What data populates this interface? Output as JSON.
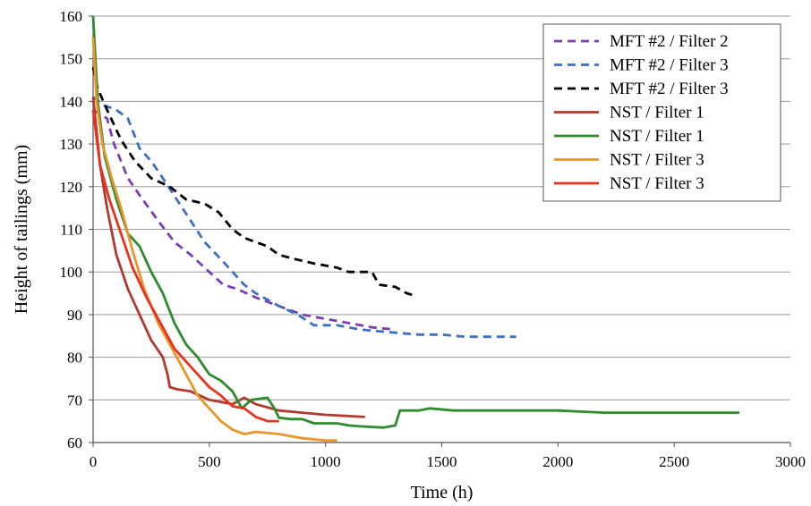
{
  "chart_data": {
    "type": "line",
    "xlabel": "Time (h)",
    "ylabel": "Height of tailings (mm)",
    "xlim": [
      0,
      3000
    ],
    "ylim": [
      60,
      160
    ],
    "xticks": [
      0,
      500,
      1000,
      1500,
      2000,
      2500,
      3000
    ],
    "yticks": [
      60,
      70,
      80,
      90,
      100,
      110,
      120,
      130,
      140,
      150,
      160
    ],
    "grid": "horizontal",
    "legend_position": "top-right",
    "series": [
      {
        "name": "MFT #2 / Filter 2",
        "color": "#7B3FB0",
        "style": "dashed",
        "points": [
          [
            0,
            138
          ],
          [
            30,
            137
          ],
          [
            60,
            136
          ],
          [
            90,
            130
          ],
          [
            150,
            122
          ],
          [
            200,
            118
          ],
          [
            280,
            112
          ],
          [
            350,
            107
          ],
          [
            420,
            104
          ],
          [
            500,
            100
          ],
          [
            560,
            97
          ],
          [
            620,
            96
          ],
          [
            700,
            94
          ],
          [
            800,
            92
          ],
          [
            900,
            90
          ],
          [
            1000,
            89
          ],
          [
            1100,
            88
          ],
          [
            1200,
            87
          ],
          [
            1300,
            86.5
          ]
        ]
      },
      {
        "name": "MFT #2 / Filter 3",
        "color": "#3F6FBF",
        "style": "dashed",
        "points": [
          [
            0,
            141
          ],
          [
            50,
            139
          ],
          [
            100,
            138
          ],
          [
            150,
            136
          ],
          [
            200,
            129
          ],
          [
            250,
            126
          ],
          [
            300,
            122
          ],
          [
            360,
            117
          ],
          [
            420,
            112
          ],
          [
            480,
            107
          ],
          [
            550,
            103
          ],
          [
            600,
            100
          ],
          [
            650,
            97
          ],
          [
            700,
            95
          ],
          [
            800,
            92
          ],
          [
            880,
            90
          ],
          [
            950,
            87.5
          ],
          [
            1050,
            87.5
          ],
          [
            1150,
            86.5
          ],
          [
            1250,
            86
          ],
          [
            1400,
            85.3
          ],
          [
            1500,
            85.3
          ],
          [
            1600,
            84.8
          ],
          [
            1820,
            84.8
          ]
        ]
      },
      {
        "name": "MFT #2 / Filter 3",
        "color": "#000000",
        "style": "dashed",
        "points": [
          [
            0,
            148
          ],
          [
            20,
            143
          ],
          [
            60,
            138
          ],
          [
            120,
            131
          ],
          [
            180,
            126
          ],
          [
            250,
            122
          ],
          [
            330,
            120
          ],
          [
            400,
            117
          ],
          [
            480,
            116
          ],
          [
            540,
            114
          ],
          [
            600,
            110
          ],
          [
            650,
            108
          ],
          [
            700,
            107
          ],
          [
            750,
            106
          ],
          [
            800,
            104
          ],
          [
            870,
            103
          ],
          [
            950,
            102
          ],
          [
            1050,
            101
          ],
          [
            1100,
            100
          ],
          [
            1150,
            100
          ],
          [
            1200,
            100
          ],
          [
            1230,
            97
          ],
          [
            1300,
            96.5
          ],
          [
            1350,
            95
          ],
          [
            1380,
            94.5
          ]
        ]
      },
      {
        "name": "NST / Filter 1",
        "color": "#B03A2E",
        "style": "solid",
        "points": [
          [
            0,
            141
          ],
          [
            30,
            125
          ],
          [
            60,
            115
          ],
          [
            100,
            104
          ],
          [
            150,
            96
          ],
          [
            200,
            90
          ],
          [
            250,
            84
          ],
          [
            300,
            80
          ],
          [
            320,
            76
          ],
          [
            330,
            73
          ],
          [
            360,
            72.5
          ],
          [
            420,
            72
          ],
          [
            500,
            70
          ],
          [
            600,
            69
          ],
          [
            650,
            70.5
          ],
          [
            700,
            69
          ],
          [
            800,
            67.5
          ],
          [
            900,
            67
          ],
          [
            1000,
            66.5
          ],
          [
            1100,
            66.2
          ],
          [
            1170,
            66
          ]
        ]
      },
      {
        "name": "NST / Filter 1",
        "color": "#2E8B2E",
        "style": "solid",
        "points": [
          [
            0,
            160
          ],
          [
            20,
            140
          ],
          [
            50,
            127
          ],
          [
            100,
            117
          ],
          [
            150,
            109
          ],
          [
            200,
            106
          ],
          [
            250,
            100
          ],
          [
            300,
            95
          ],
          [
            350,
            88
          ],
          [
            400,
            83
          ],
          [
            450,
            80
          ],
          [
            500,
            76
          ],
          [
            550,
            74.5
          ],
          [
            600,
            72
          ],
          [
            640,
            68
          ],
          [
            660,
            69
          ],
          [
            680,
            70
          ],
          [
            750,
            70.5
          ],
          [
            780,
            68
          ],
          [
            800,
            65.8
          ],
          [
            850,
            65.5
          ],
          [
            900,
            65.5
          ],
          [
            950,
            64.5
          ],
          [
            1050,
            64.5
          ],
          [
            1100,
            64
          ],
          [
            1150,
            63.8
          ],
          [
            1250,
            63.5
          ],
          [
            1300,
            64
          ],
          [
            1320,
            67.5
          ],
          [
            1400,
            67.5
          ],
          [
            1450,
            68
          ],
          [
            1550,
            67.5
          ],
          [
            1700,
            67.5
          ],
          [
            2000,
            67.5
          ],
          [
            2200,
            67
          ],
          [
            2500,
            67
          ],
          [
            2780,
            67
          ]
        ]
      },
      {
        "name": "NST / Filter 3",
        "color": "#E8962A",
        "style": "solid",
        "points": [
          [
            0,
            155
          ],
          [
            15,
            140
          ],
          [
            40,
            130
          ],
          [
            80,
            122
          ],
          [
            120,
            115
          ],
          [
            170,
            105
          ],
          [
            220,
            96
          ],
          [
            280,
            88
          ],
          [
            340,
            82
          ],
          [
            400,
            76
          ],
          [
            450,
            71
          ],
          [
            500,
            68
          ],
          [
            550,
            65
          ],
          [
            600,
            63
          ],
          [
            650,
            62
          ],
          [
            700,
            62.5
          ],
          [
            800,
            62
          ],
          [
            900,
            61
          ],
          [
            1000,
            60.5
          ],
          [
            1050,
            60.5
          ]
        ]
      },
      {
        "name": "NST / Filter 3",
        "color": "#E8321E",
        "style": "solid",
        "points": [
          [
            0,
            138
          ],
          [
            30,
            125
          ],
          [
            70,
            117
          ],
          [
            120,
            109
          ],
          [
            170,
            101
          ],
          [
            230,
            94
          ],
          [
            290,
            88
          ],
          [
            350,
            82
          ],
          [
            400,
            79
          ],
          [
            450,
            76
          ],
          [
            500,
            73
          ],
          [
            550,
            71
          ],
          [
            600,
            68.5
          ],
          [
            650,
            68
          ],
          [
            700,
            66
          ],
          [
            750,
            65
          ],
          [
            800,
            65
          ]
        ]
      }
    ]
  }
}
